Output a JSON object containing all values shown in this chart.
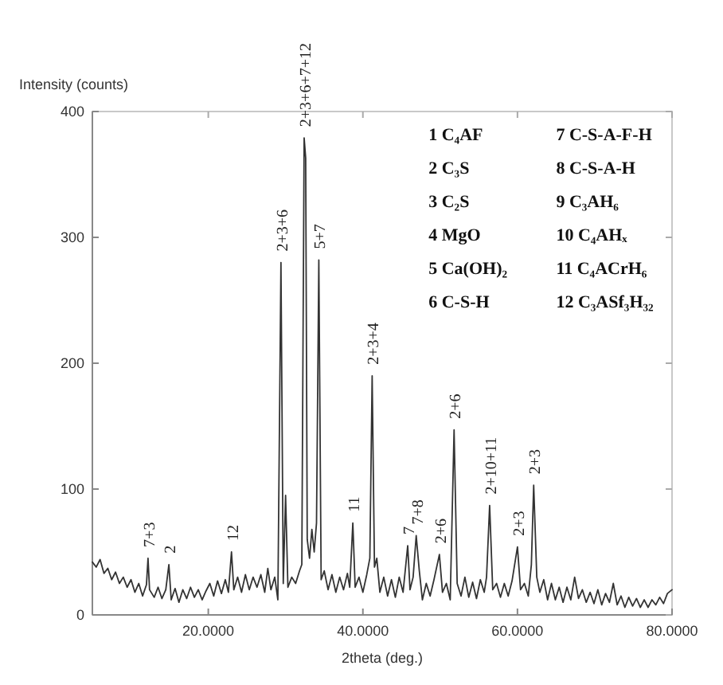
{
  "chart_data": {
    "type": "line",
    "xlabel": "2theta (deg.)",
    "ylabel": "Intensity (counts)",
    "xlim": [
      5,
      80
    ],
    "xticks": [
      {
        "value": 20,
        "label": "20.0000"
      },
      {
        "value": 40,
        "label": "40.0000"
      },
      {
        "value": 60,
        "label": "60.0000"
      },
      {
        "value": 80,
        "label": "80.0000"
      }
    ],
    "ylim": [
      0,
      400
    ],
    "yticks": [
      0,
      100,
      200,
      300,
      400
    ],
    "grid": false,
    "marker": "none",
    "line_style": "solid",
    "series": [
      {
        "color": "#333333",
        "x": [
          5,
          5.5,
          6,
          6.5,
          7,
          7.5,
          8,
          8.5,
          9,
          9.5,
          10,
          10.5,
          11,
          11.5,
          12,
          12.2,
          12.4,
          13,
          13.5,
          14,
          14.5,
          14.9,
          15.2,
          15.7,
          16.2,
          16.7,
          17.2,
          17.7,
          18.2,
          18.7,
          19.2,
          19.7,
          20.2,
          20.7,
          21.2,
          21.7,
          22.2,
          22.6,
          23.0,
          23.3,
          23.8,
          24.3,
          24.8,
          25.3,
          25.8,
          26.3,
          26.8,
          27.3,
          27.7,
          28.1,
          28.6,
          29.0,
          29.4,
          29.7,
          30.0,
          30.3,
          30.8,
          31.3,
          31.8,
          32.1,
          32.4,
          32.6,
          32.8,
          33.1,
          33.4,
          33.7,
          34.0,
          34.3,
          34.6,
          35.0,
          35.5,
          36.0,
          36.5,
          37.0,
          37.5,
          38.0,
          38.3,
          38.7,
          39.0,
          39.5,
          40.0,
          40.5,
          40.9,
          41.2,
          41.5,
          41.8,
          42.2,
          42.7,
          43.2,
          43.7,
          44.2,
          44.7,
          45.2,
          45.8,
          46.1,
          46.5,
          46.9,
          47.3,
          47.7,
          48.2,
          48.7,
          49.2,
          49.9,
          50.3,
          50.8,
          51.3,
          51.8,
          52.2,
          52.7,
          53.2,
          53.7,
          54.2,
          54.7,
          55.2,
          55.7,
          56.0,
          56.4,
          56.8,
          57.3,
          57.8,
          58.3,
          58.8,
          59.3,
          60.0,
          60.4,
          60.9,
          61.4,
          61.8,
          62.1,
          62.5,
          62.9,
          63.4,
          63.9,
          64.4,
          64.9,
          65.4,
          65.9,
          66.4,
          66.9,
          67.4,
          67.9,
          68.4,
          68.9,
          69.4,
          69.9,
          70.4,
          70.9,
          71.4,
          71.9,
          72.4,
          72.9,
          73.4,
          73.9,
          74.4,
          74.9,
          75.4,
          75.9,
          76.4,
          76.9,
          77.4,
          77.9,
          78.4,
          78.9,
          79.4,
          80
        ],
        "values": [
          42,
          38,
          44,
          33,
          37,
          28,
          34,
          25,
          30,
          22,
          28,
          18,
          25,
          15,
          24,
          45,
          20,
          14,
          22,
          13,
          20,
          40,
          12,
          21,
          10,
          20,
          13,
          22,
          14,
          20,
          12,
          19,
          25,
          15,
          27,
          17,
          28,
          18,
          50,
          20,
          30,
          18,
          32,
          20,
          30,
          22,
          32,
          18,
          37,
          20,
          30,
          12,
          280,
          25,
          95,
          22,
          30,
          25,
          35,
          40,
          379,
          363,
          60,
          45,
          68,
          50,
          73,
          282,
          28,
          35,
          20,
          32,
          18,
          30,
          20,
          33,
          22,
          73,
          22,
          30,
          18,
          32,
          45,
          190,
          38,
          45,
          18,
          30,
          15,
          28,
          14,
          30,
          18,
          55,
          20,
          30,
          63,
          35,
          12,
          25,
          15,
          28,
          48,
          18,
          25,
          12,
          147,
          25,
          15,
          30,
          14,
          26,
          13,
          28,
          18,
          30,
          87,
          20,
          25,
          14,
          25,
          15,
          27,
          54,
          20,
          25,
          15,
          40,
          103,
          30,
          18,
          28,
          12,
          25,
          12,
          22,
          10,
          22,
          12,
          30,
          13,
          20,
          10,
          18,
          9,
          20,
          8,
          17,
          10,
          25,
          8,
          15,
          6,
          14,
          7,
          13,
          6,
          12,
          6,
          12,
          8,
          14,
          9,
          17,
          20
        ]
      }
    ],
    "annotations": [
      "1 C₄AF",
      "2 C₃S",
      "3 C₂S",
      "4 MgO",
      "5 Ca(OH)₂",
      "6 C-S-H",
      "7 C-S-A-F-H",
      "8 C-S-A-H",
      "9 C₃AH₆",
      "10 C₄AHₓ",
      "11 C₄ACrH₆",
      "12 C₃ASf₃H₃₂",
      {
        "text": "7+3",
        "x": 12.2,
        "y": 45
      },
      {
        "text": "2",
        "x": 14.9,
        "y": 40
      },
      {
        "text": "12",
        "x": 23.0,
        "y": 50
      },
      {
        "text": "2+3+6",
        "x": 29.4,
        "y": 280
      },
      {
        "text": "2+3+6+7+12",
        "x": 32.4,
        "y": 379
      },
      {
        "text": "5+7",
        "x": 34.3,
        "y": 282
      },
      {
        "text": "11",
        "x": 38.7,
        "y": 73
      },
      {
        "text": "2+3+4",
        "x": 41.2,
        "y": 190
      },
      {
        "text": "7",
        "x": 45.8,
        "y": 55
      },
      {
        "text": "7+8",
        "x": 46.9,
        "y": 63
      },
      {
        "text": "2+6",
        "x": 49.9,
        "y": 48
      },
      {
        "text": "2+6",
        "x": 51.8,
        "y": 147
      },
      {
        "text": "2+10+11",
        "x": 56.4,
        "y": 87
      },
      {
        "text": "2+3",
        "x": 60.0,
        "y": 54
      },
      {
        "text": "2+3",
        "x": 62.1,
        "y": 103
      }
    ]
  }
}
